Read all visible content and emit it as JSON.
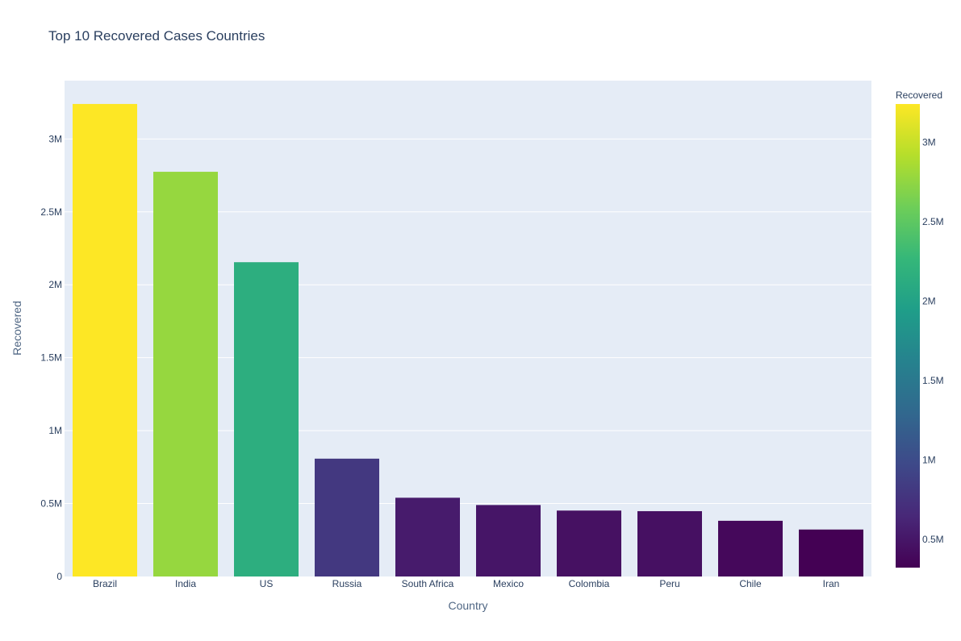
{
  "chart_data": {
    "type": "bar",
    "title": "Top 10 Recovered Cases Countries",
    "xlabel": "Country",
    "ylabel": "Recovered",
    "categories": [
      "Brazil",
      "India",
      "US",
      "Russia",
      "South Africa",
      "Mexico",
      "Colombia",
      "Peru",
      "Chile",
      "Iran"
    ],
    "values": [
      3240000,
      2775000,
      2155000,
      808000,
      540000,
      490000,
      452000,
      448000,
      382000,
      322000
    ],
    "ylim": [
      0,
      3400000
    ],
    "y_ticks": [
      0,
      500000,
      1000000,
      1500000,
      2000000,
      2500000,
      3000000
    ],
    "y_tick_labels": [
      "0",
      "0.5M",
      "1M",
      "1.5M",
      "2M",
      "2.5M",
      "3M"
    ],
    "grid": true,
    "colorbar": {
      "title": "Recovered",
      "range": [
        322000,
        3240000
      ],
      "ticks": [
        500000,
        1000000,
        1500000,
        2000000,
        2500000,
        3000000
      ],
      "tick_labels": [
        "0.5M",
        "1M",
        "1.5M",
        "2M",
        "2.5M",
        "3M"
      ],
      "colorscale": [
        "#440154",
        "#482878",
        "#3e4989",
        "#31688e",
        "#26828e",
        "#1f9e89",
        "#35b779",
        "#6ece58",
        "#b5de2b",
        "#fde725"
      ]
    },
    "plot_background": "#e5ecf6"
  }
}
